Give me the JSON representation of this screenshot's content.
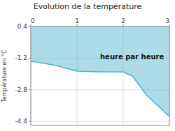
{
  "chart_data": {
    "type": "area",
    "title": "Evolution de la température",
    "y_label": "Température en °C",
    "annotation": "heure par heure",
    "x": [
      0,
      0.5,
      1.0,
      1.5,
      2.0,
      2.2,
      2.5,
      3.0
    ],
    "values": [
      -1.35,
      -1.55,
      -1.85,
      -1.9,
      -1.9,
      -2.1,
      -3.05,
      -4.15
    ],
    "color": "#4ab0cc",
    "xlim": [
      0,
      3
    ],
    "xticks": [
      0,
      1,
      2,
      3
    ],
    "ylim": [
      -4.6,
      0.4
    ],
    "yticks": [
      0.4,
      -1.2,
      -2.8,
      -4.4
    ],
    "grid": true
  }
}
